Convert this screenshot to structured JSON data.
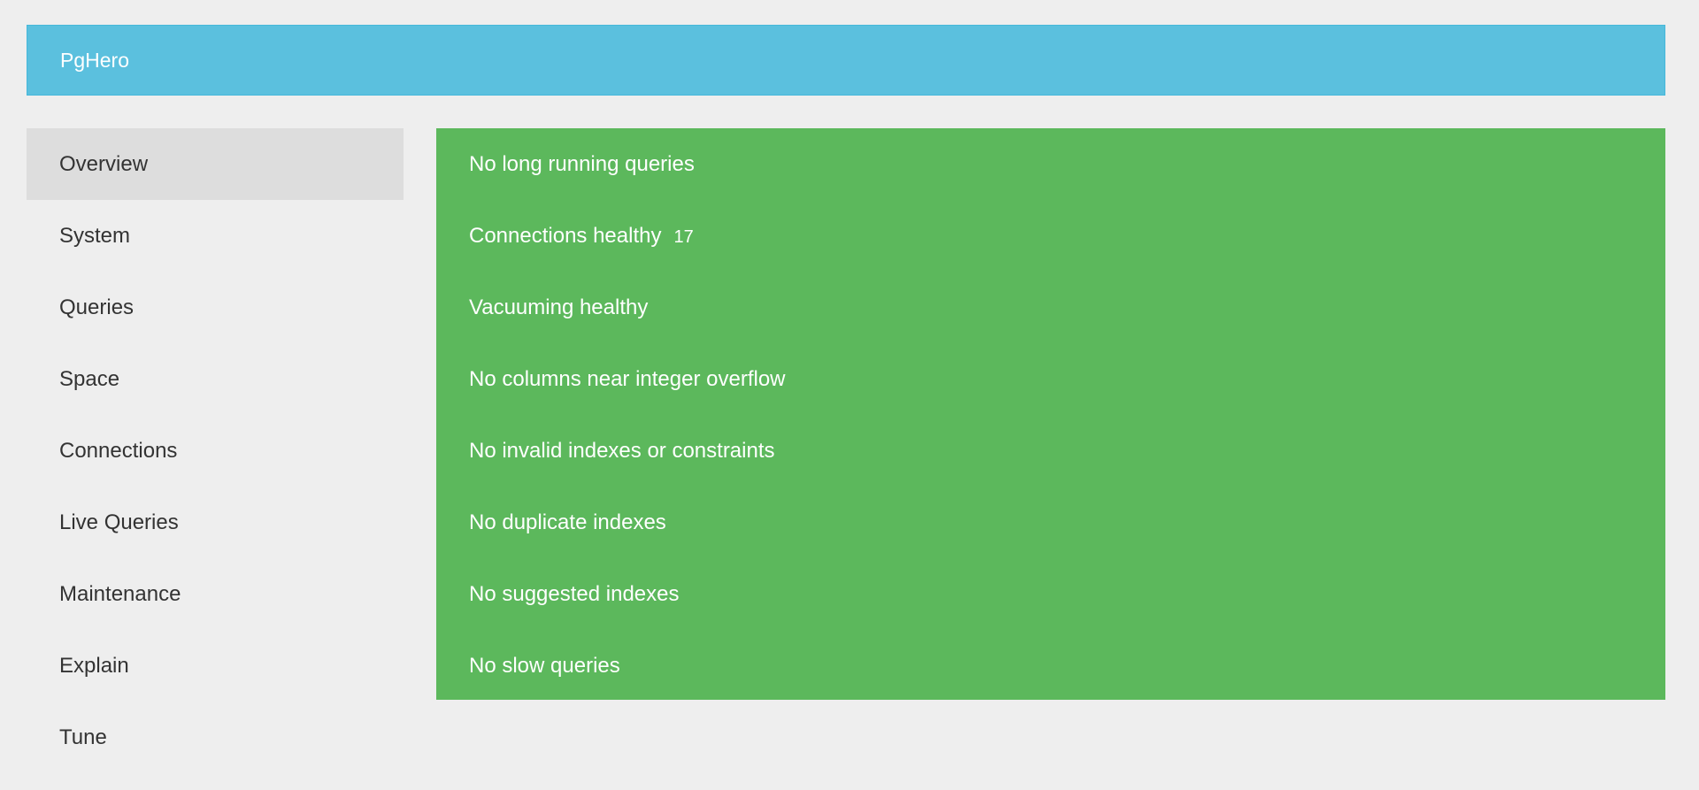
{
  "header": {
    "brand": "PgHero",
    "color": "#5bc0de"
  },
  "sidebar": {
    "active": "Overview",
    "items": [
      {
        "label": "Overview"
      },
      {
        "label": "System"
      },
      {
        "label": "Queries"
      },
      {
        "label": "Space"
      },
      {
        "label": "Connections"
      },
      {
        "label": "Live Queries"
      },
      {
        "label": "Maintenance"
      },
      {
        "label": "Explain"
      },
      {
        "label": "Tune"
      }
    ]
  },
  "checks": {
    "status_color": "#5cb85c",
    "items": [
      {
        "label": "No long running queries"
      },
      {
        "label": "Connections healthy",
        "badge": "17"
      },
      {
        "label": "Vacuuming healthy"
      },
      {
        "label": "No columns near integer overflow"
      },
      {
        "label": "No invalid indexes or constraints"
      },
      {
        "label": "No duplicate indexes"
      },
      {
        "label": "No suggested indexes"
      },
      {
        "label": "No slow queries"
      }
    ]
  }
}
